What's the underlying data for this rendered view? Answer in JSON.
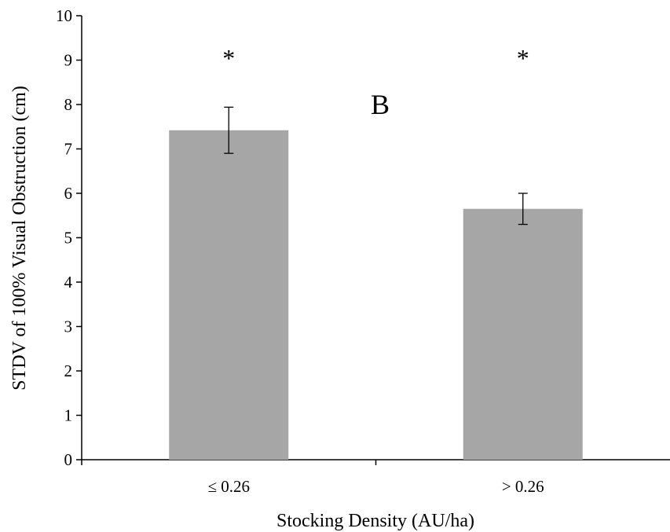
{
  "chart_data": {
    "type": "bar",
    "title": "",
    "panel_label": "B",
    "xlabel": "Stocking Density (AU/ha)",
    "ylabel": "STDV of 100% Visual Obstruction (cm)",
    "categories": [
      "≤ 0.26",
      "> 0.26"
    ],
    "values": [
      7.42,
      5.65
    ],
    "error": [
      0.52,
      0.35
    ],
    "annotations": [
      "*",
      "*"
    ],
    "ylim": [
      0,
      10
    ],
    "yticks": [
      "0",
      "1",
      "2",
      "3",
      "4",
      "5",
      "6",
      "7",
      "8",
      "9",
      "10"
    ],
    "grid": false,
    "bar_color": "#a6a6a6"
  }
}
